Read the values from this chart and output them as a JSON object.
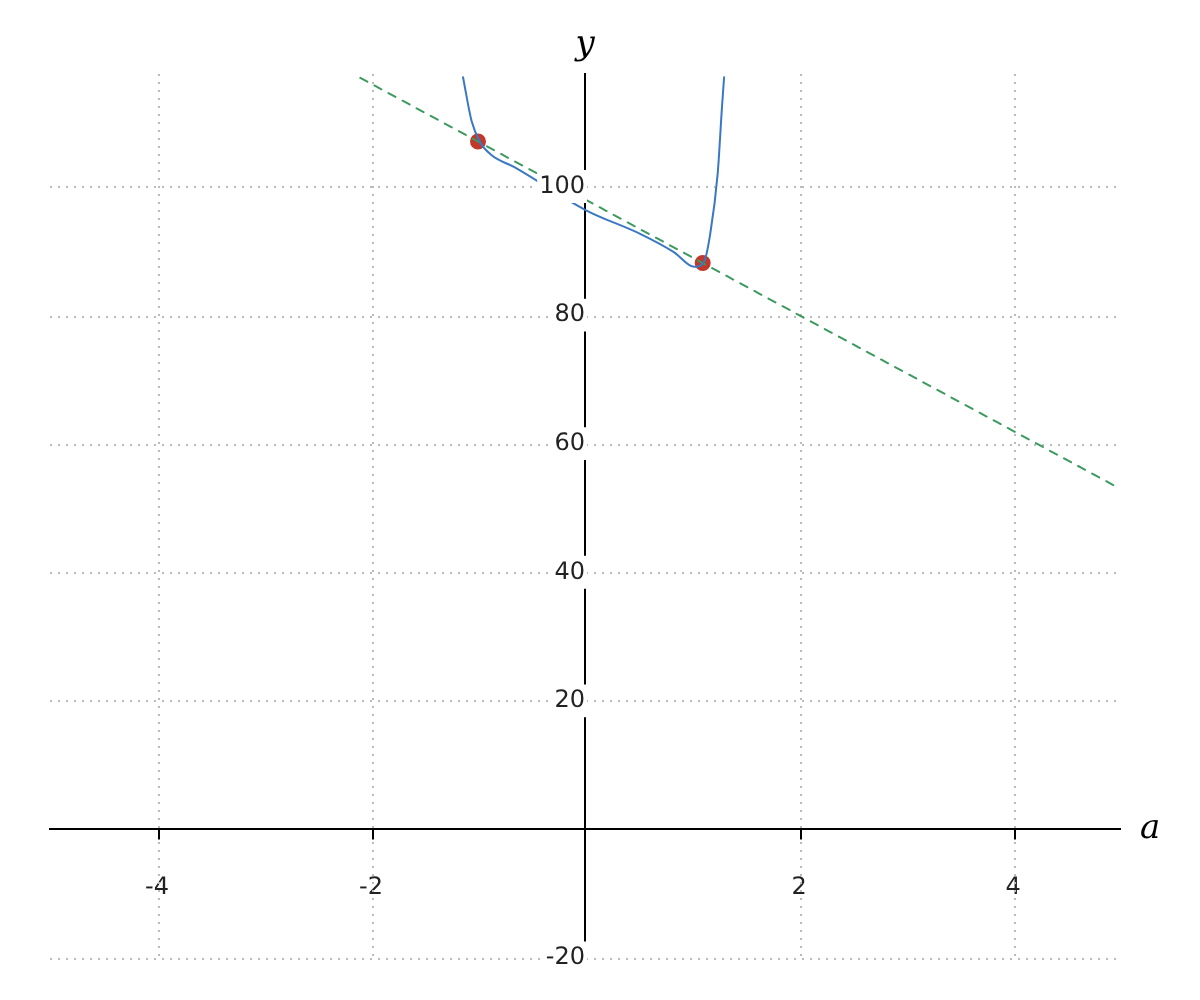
{
  "chart_data": {
    "type": "line",
    "xlabel": "a",
    "ylabel": "y",
    "xlim": [
      -5,
      5
    ],
    "ylim": [
      -20,
      117.5
    ],
    "xticks": [
      -4,
      -2,
      2,
      4
    ],
    "yticks": [
      -20,
      20,
      40,
      60,
      80,
      100
    ],
    "grid": true,
    "legend": false,
    "marker": "none",
    "series": [
      {
        "color": "#3a78c3",
        "line_style": "solid",
        "x": [
          -1.14,
          -1.06,
          -0.98,
          -0.875,
          -0.66,
          0.01,
          0.52,
          0.83,
          1.02,
          1.11,
          1.17,
          1.24,
          1.28,
          1.3
        ],
        "values": [
          117,
          110.2,
          106.9,
          104.9,
          103,
          96.3,
          92.6,
          89.8,
          87.5,
          88.2,
          92.6,
          102,
          112.3,
          117
        ]
      },
      {
        "type": "line",
        "color": "#3c9a5f",
        "line_style": "dashed",
        "x": [
          -2.1,
          5
        ],
        "values": [
          116.9,
          53
        ]
      },
      {
        "type": "scatter",
        "color": "#c0392b",
        "marker": "circle",
        "x": [
          -1,
          1.1
        ],
        "values": [
          107,
          88.1
        ]
      }
    ]
  }
}
